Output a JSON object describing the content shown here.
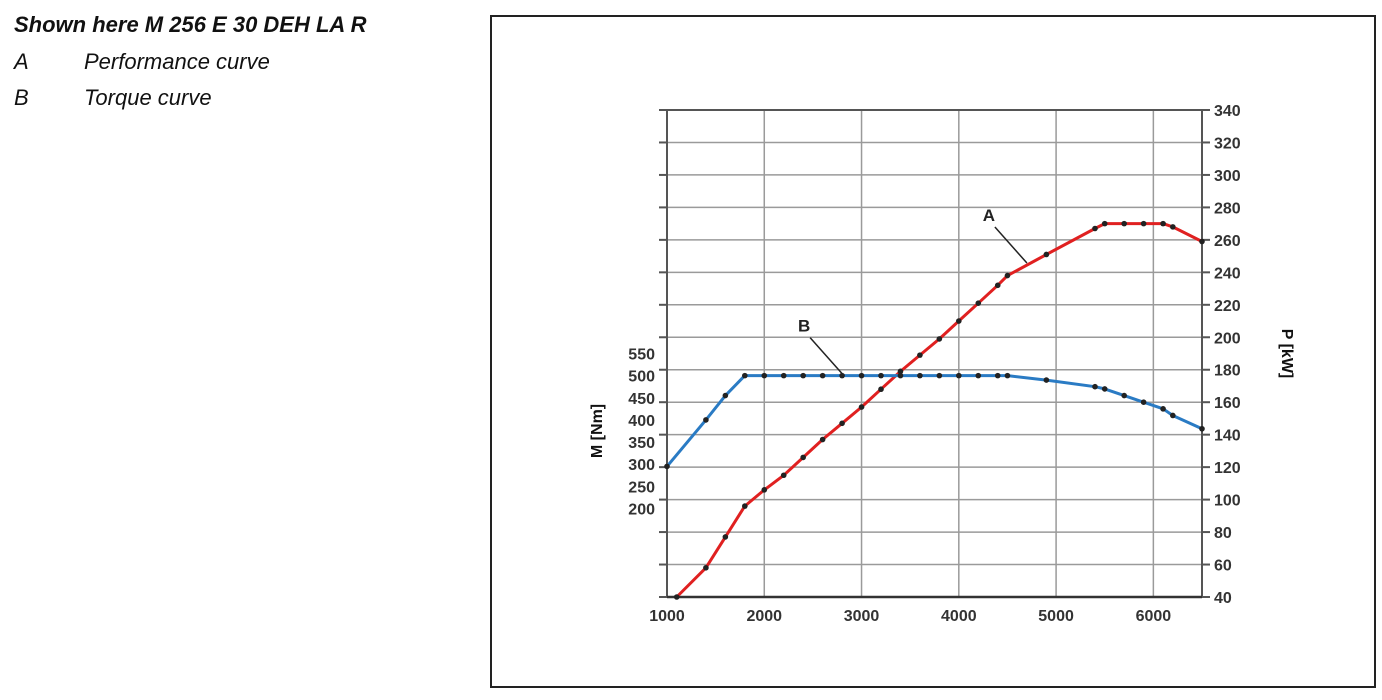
{
  "caption": {
    "title": "Shown here M 256 E 30 DEH LA R",
    "legend": [
      {
        "key": "A",
        "text": "Performance curve"
      },
      {
        "key": "B",
        "text": "Torque curve"
      }
    ]
  },
  "chart_data": {
    "type": "line",
    "title": "",
    "xlabel": "",
    "ylabel_left": "M [Nm]",
    "ylabel_right": "P [kW]",
    "xlim": [
      1000,
      6500
    ],
    "x_ticks": [
      1000,
      2000,
      3000,
      4000,
      5000,
      6000
    ],
    "ylim_right": [
      40,
      340
    ],
    "y_ticks_right": [
      40,
      60,
      80,
      100,
      120,
      140,
      160,
      180,
      200,
      220,
      240,
      260,
      280,
      300,
      320,
      340
    ],
    "ylim_left": [
      0,
      1100
    ],
    "y_ticks_left": [
      200,
      250,
      300,
      350,
      400,
      450,
      500,
      550
    ],
    "grid": true,
    "series": [
      {
        "name": "A",
        "axis": "right",
        "color": "#e02020",
        "points": [
          [
            1100,
            40
          ],
          [
            1400,
            58
          ],
          [
            1600,
            77
          ],
          [
            1800,
            96
          ],
          [
            2000,
            106
          ],
          [
            2200,
            115
          ],
          [
            2400,
            126
          ],
          [
            2600,
            137
          ],
          [
            2800,
            147
          ],
          [
            3000,
            157
          ],
          [
            3200,
            168
          ],
          [
            3400,
            179
          ],
          [
            3600,
            189
          ],
          [
            3800,
            199
          ],
          [
            4000,
            210
          ],
          [
            4200,
            221
          ],
          [
            4400,
            232
          ],
          [
            4500,
            238
          ],
          [
            4900,
            251
          ],
          [
            5400,
            267
          ],
          [
            5500,
            270
          ],
          [
            5700,
            270
          ],
          [
            5900,
            270
          ],
          [
            6100,
            270
          ],
          [
            6200,
            268
          ],
          [
            6500,
            259
          ]
        ]
      },
      {
        "name": "B",
        "axis": "left",
        "color": "#2a7bc4",
        "points": [
          [
            1000,
            295
          ],
          [
            1400,
            400
          ],
          [
            1600,
            455
          ],
          [
            1800,
            500
          ],
          [
            2000,
            500
          ],
          [
            2200,
            500
          ],
          [
            2400,
            500
          ],
          [
            2600,
            500
          ],
          [
            2800,
            500
          ],
          [
            3000,
            500
          ],
          [
            3200,
            500
          ],
          [
            3400,
            500
          ],
          [
            3600,
            500
          ],
          [
            3800,
            500
          ],
          [
            4000,
            500
          ],
          [
            4200,
            500
          ],
          [
            4400,
            500
          ],
          [
            4500,
            500
          ],
          [
            4900,
            490
          ],
          [
            5400,
            475
          ],
          [
            5500,
            470
          ],
          [
            5700,
            455
          ],
          [
            5900,
            440
          ],
          [
            6100,
            425
          ],
          [
            6200,
            410
          ],
          [
            6500,
            380
          ]
        ]
      }
    ],
    "annotations": [
      {
        "label": "A",
        "series": "A",
        "at_x": 4700
      },
      {
        "label": "B",
        "series": "B",
        "at_x": 2800
      }
    ]
  }
}
